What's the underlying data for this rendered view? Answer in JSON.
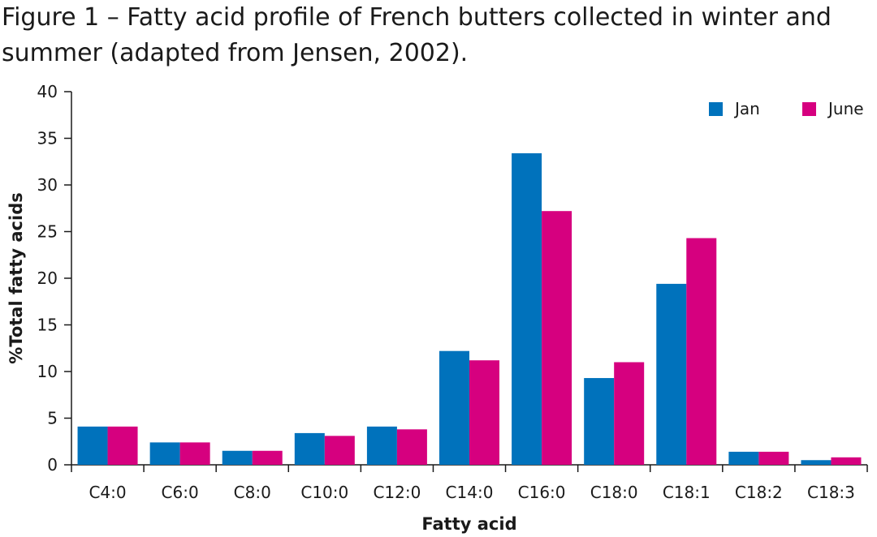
{
  "title": "Figure 1 – Fatty acid profile of French butters collected in winter and summer (adapted from Jensen, 2002).",
  "chart_data": {
    "type": "bar",
    "title": "Figure 1 – Fatty acid profile of French butters collected in winter and summer (adapted from Jensen, 2002).",
    "xlabel": "Fatty acid",
    "ylabel": "%Total fatty acids",
    "ylim": [
      0,
      40
    ],
    "yticks": [
      0,
      5,
      10,
      15,
      20,
      25,
      30,
      35,
      40
    ],
    "grid": false,
    "legend_position": "top-right",
    "categories": [
      "C4:0",
      "C6:0",
      "C8:0",
      "C10:0",
      "C12:0",
      "C14:0",
      "C16:0",
      "C18:0",
      "C18:1",
      "C18:2",
      "C18:3"
    ],
    "series": [
      {
        "name": "Jan",
        "color": "#0072bc",
        "values": [
          4.1,
          2.4,
          1.5,
          3.4,
          4.1,
          12.2,
          33.4,
          9.3,
          19.4,
          1.4,
          0.5
        ]
      },
      {
        "name": "June",
        "color": "#d6007f",
        "values": [
          4.1,
          2.4,
          1.5,
          3.1,
          3.8,
          11.2,
          27.2,
          11.0,
          24.3,
          1.4,
          0.8
        ]
      }
    ]
  }
}
